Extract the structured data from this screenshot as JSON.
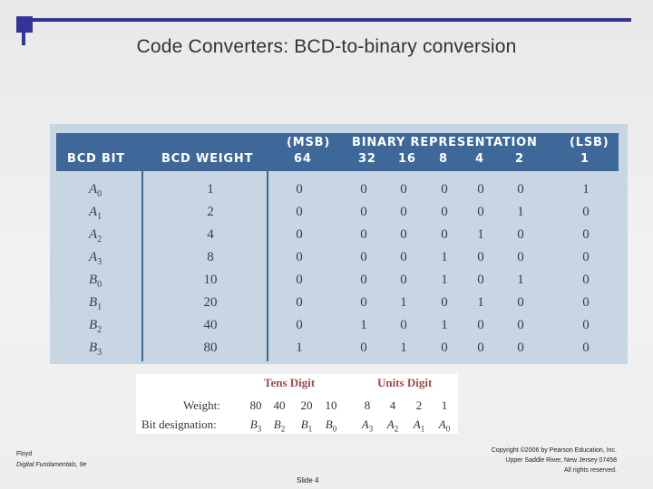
{
  "slide": {
    "title_main": "Code Converters",
    "title_colon": ":",
    "title_sub": " BCD-to-binary conversion",
    "slide_number": "Slide 4"
  },
  "table": {
    "header": {
      "bcd_bit": "BCD BIT",
      "bcd_weight": "BCD WEIGHT",
      "msb": "(MSB)",
      "binary_rep": "BINARY REPRESENTATION",
      "lsb": "(LSB)",
      "weights": [
        "64",
        "32",
        "16",
        "8",
        "4",
        "2",
        "1"
      ]
    },
    "rows": [
      {
        "bit": "A",
        "sub": "0",
        "weight": "1",
        "bits": [
          "0",
          "0",
          "0",
          "0",
          "0",
          "0",
          "1"
        ]
      },
      {
        "bit": "A",
        "sub": "1",
        "weight": "2",
        "bits": [
          "0",
          "0",
          "0",
          "0",
          "0",
          "1",
          "0"
        ]
      },
      {
        "bit": "A",
        "sub": "2",
        "weight": "4",
        "bits": [
          "0",
          "0",
          "0",
          "0",
          "1",
          "0",
          "0"
        ]
      },
      {
        "bit": "A",
        "sub": "3",
        "weight": "8",
        "bits": [
          "0",
          "0",
          "0",
          "1",
          "0",
          "0",
          "0"
        ]
      },
      {
        "bit": "B",
        "sub": "0",
        "weight": "10",
        "bits": [
          "0",
          "0",
          "0",
          "1",
          "0",
          "1",
          "0"
        ]
      },
      {
        "bit": "B",
        "sub": "1",
        "weight": "20",
        "bits": [
          "0",
          "0",
          "1",
          "0",
          "1",
          "0",
          "0"
        ]
      },
      {
        "bit": "B",
        "sub": "2",
        "weight": "40",
        "bits": [
          "0",
          "1",
          "0",
          "1",
          "0",
          "0",
          "0"
        ]
      },
      {
        "bit": "B",
        "sub": "3",
        "weight": "80",
        "bits": [
          "1",
          "0",
          "1",
          "0",
          "0",
          "0",
          "0"
        ]
      }
    ]
  },
  "digits": {
    "tens_title": "Tens Digit",
    "units_title": "Units Digit",
    "weight_label": "Weight:",
    "designation_label": "Bit designation:",
    "weights": [
      "80",
      "40",
      "20",
      "10",
      "8",
      "4",
      "2",
      "1"
    ],
    "designations": [
      {
        "bit": "B",
        "sub": "3"
      },
      {
        "bit": "B",
        "sub": "2"
      },
      {
        "bit": "B",
        "sub": "1"
      },
      {
        "bit": "B",
        "sub": "0"
      },
      {
        "bit": "A",
        "sub": "3"
      },
      {
        "bit": "A",
        "sub": "2"
      },
      {
        "bit": "A",
        "sub": "1"
      },
      {
        "bit": "A",
        "sub": "0"
      }
    ]
  },
  "footer": {
    "author": "Floyd",
    "book": "Digital Fundamentals, 9e",
    "copyright_line1": "Copyright ©2006 by Pearson Education, Inc.",
    "copyright_line2": "Upper Saddle River, New Jersey 07458",
    "copyright_line3": "All rights reserved."
  },
  "colors": {
    "accent": "#333399",
    "table_header": "#3d6899",
    "table_body": "#c8d6e4",
    "digit_titles": "#a04a4a"
  }
}
